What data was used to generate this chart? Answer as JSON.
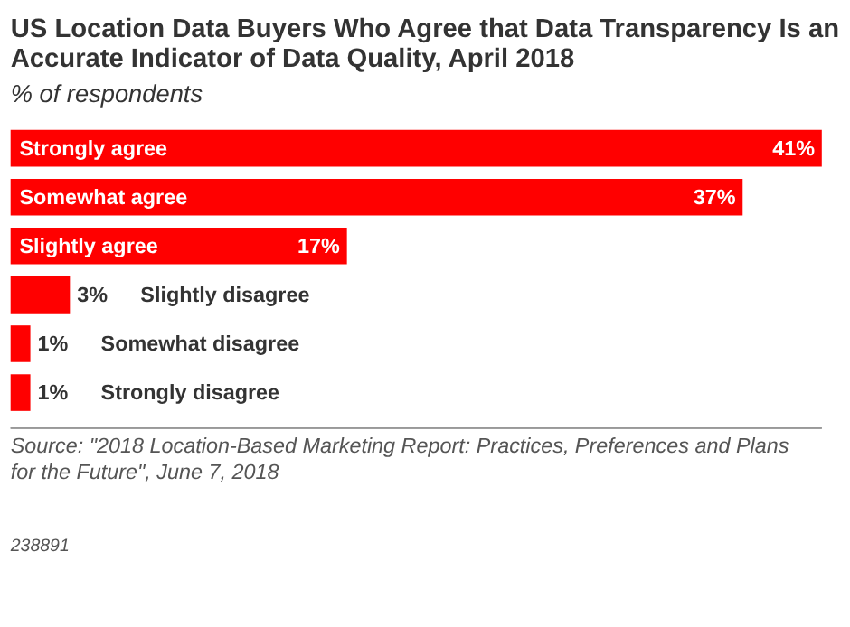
{
  "chart_data": {
    "type": "bar",
    "orientation": "horizontal",
    "title": "US Location Data Buyers Who Agree that Data Transparency Is an Accurate Indicator of Data Quality, April 2018",
    "subtitle": "% of respondents",
    "categories": [
      "Strongly agree",
      "Somewhat agree",
      "Slightly agree",
      "Slightly disagree",
      "Somewhat disagree",
      "Strongly disagree"
    ],
    "values": [
      41,
      37,
      17,
      3,
      1,
      1
    ],
    "value_labels": [
      "41%",
      "37%",
      "17%",
      "3%",
      "1%",
      "1%"
    ],
    "color": "#ff0000",
    "annotations": [
      "Source: \"2018 Location-Based Marketing Report: Practices, Preferences and Plans for the Future\", June 7, 2018",
      "238891"
    ]
  }
}
